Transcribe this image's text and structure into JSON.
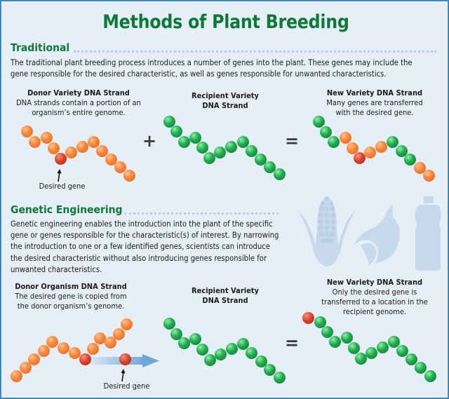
{
  "title": "Methods of Plant Breeding",
  "traditional": {
    "heading": "Traditional",
    "lines": [
      "The traditional plant breeding process introduces a number of genes into the plant. These genes may include the",
      "gene responsible for the desired characteristic, as well as genes responsible for unwanted characteristics."
    ],
    "donor": {
      "title": "Donor Variety DNA Strand",
      "sub1": "DNA strands contain a portion of an",
      "sub2": "organism’s entire genome."
    },
    "recipient": {
      "title1": "Recipient Variety",
      "title2": "DNA Strand"
    },
    "new_variety": {
      "title": "New Variety DNA Strand",
      "sub1": "Many genes are transferred",
      "sub2": "with the desired gene."
    },
    "plus": "+",
    "equals": "=",
    "desired_gene_label": "Desired gene"
  },
  "genetic": {
    "heading": "Genetic Engineering",
    "lines": [
      "Genetic engineering enables the introduction into the plant of the specific",
      "gene or genes responsible for the characteristic(s) of interest. By narrowing",
      "the introduction to one or a few identified genes, scientists can introduce",
      "the desired characteristic without also introducing genes responsible for",
      "unwanted characteristics."
    ],
    "donor": {
      "title": "Donor Organism DNA Strand",
      "sub1": "The desired gene is copied from",
      "sub2": "the donor organism’s genome."
    },
    "recipient": {
      "title1": "Recipient Variety",
      "title2": "DNA Strand"
    },
    "new_variety": {
      "title": "New Variety DNA Strand",
      "sub1": "Only the desired gene is",
      "sub2": "transferred to a location in the",
      "sub3": "recipient genome."
    },
    "equals": "=",
    "desired_gene_label": "Desired gene"
  },
  "icons": [
    "corn-icon",
    "soybean-icon",
    "oil-bottle-icon"
  ],
  "colors": {
    "heading_green": "#0c7a36",
    "background": "#e6eef7",
    "border": "#3b87c2",
    "orange_gene": "#f98a3d",
    "red_gene": "#d9432b",
    "green_gene": "#22ad50"
  },
  "strands": {
    "trad_donor": [
      [
        38,
        187,
        "o"
      ],
      [
        49,
        202,
        "o"
      ],
      [
        66,
        196,
        "o"
      ],
      [
        76,
        211,
        "o"
      ],
      [
        86,
        226,
        "r"
      ],
      [
        101,
        217,
        "o"
      ],
      [
        117,
        209,
        "o"
      ],
      [
        133,
        202,
        "o"
      ],
      [
        145,
        215,
        "o"
      ],
      [
        158,
        227,
        "o"
      ],
      [
        171,
        238,
        "o"
      ],
      [
        184,
        250,
        "o"
      ]
    ],
    "trad_recipient": [
      [
        241,
        173,
        "g"
      ],
      [
        251,
        187,
        "g"
      ],
      [
        262,
        202,
        "g"
      ],
      [
        278,
        196,
        "g"
      ],
      [
        288,
        210,
        "g"
      ],
      [
        298,
        225,
        "g"
      ],
      [
        313,
        217,
        "g"
      ],
      [
        329,
        209,
        "g"
      ],
      [
        346,
        202,
        "g"
      ],
      [
        358,
        215,
        "g"
      ],
      [
        371,
        227,
        "g"
      ],
      [
        384,
        238,
        "g"
      ],
      [
        398,
        248,
        "g"
      ]
    ],
    "trad_new": [
      [
        454,
        173,
        "g"
      ],
      [
        464,
        188,
        "g"
      ],
      [
        475,
        202,
        "g"
      ],
      [
        492,
        196,
        "o"
      ],
      [
        502,
        211,
        "o"
      ],
      [
        512,
        225,
        "r"
      ],
      [
        527,
        217,
        "o"
      ],
      [
        543,
        209,
        "o"
      ],
      [
        559,
        202,
        "g"
      ],
      [
        572,
        215,
        "g"
      ],
      [
        584,
        227,
        "g"
      ],
      [
        598,
        239,
        "o"
      ],
      [
        611,
        250,
        "o"
      ]
    ],
    "ge_donor": [
      [
        23,
        536,
        "o"
      ],
      [
        36,
        524,
        "o"
      ],
      [
        48,
        512,
        "o"
      ],
      [
        62,
        500,
        "o"
      ],
      [
        74,
        487,
        "o"
      ],
      [
        90,
        496,
        "o"
      ],
      [
        106,
        503,
        "o"
      ],
      [
        121,
        512,
        "r"
      ],
      [
        132,
        497,
        "o"
      ],
      [
        142,
        482,
        "o"
      ],
      [
        157,
        488,
        "o"
      ],
      [
        169,
        476,
        "o"
      ],
      [
        180,
        462,
        "o"
      ],
      [
        178,
        512,
        "r"
      ]
    ],
    "ge_recipient": [
      [
        241,
        461,
        "g"
      ],
      [
        251,
        476,
        "g"
      ],
      [
        262,
        489,
        "g"
      ],
      [
        278,
        483,
        "g"
      ],
      [
        288,
        498,
        "g"
      ],
      [
        299,
        513,
        "g"
      ],
      [
        314,
        505,
        "g"
      ],
      [
        330,
        497,
        "g"
      ],
      [
        346,
        490,
        "g"
      ],
      [
        358,
        503,
        "g"
      ],
      [
        372,
        515,
        "g"
      ],
      [
        384,
        527,
        "g"
      ],
      [
        398,
        538,
        "g"
      ]
    ],
    "ge_new": [
      [
        439,
        453,
        "r"
      ],
      [
        456,
        459,
        "g"
      ],
      [
        466,
        473,
        "g"
      ],
      [
        477,
        487,
        "g"
      ],
      [
        494,
        481,
        "g"
      ],
      [
        504,
        496,
        "g"
      ],
      [
        514,
        511,
        "g"
      ],
      [
        529,
        503,
        "g"
      ],
      [
        545,
        495,
        "g"
      ],
      [
        561,
        487,
        "g"
      ],
      [
        573,
        500,
        "g"
      ],
      [
        586,
        512,
        "g"
      ],
      [
        599,
        524,
        "g"
      ],
      [
        613,
        536,
        "g"
      ]
    ]
  }
}
